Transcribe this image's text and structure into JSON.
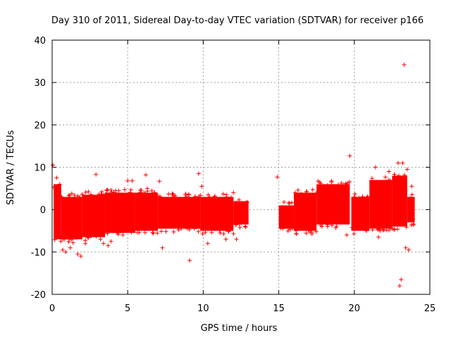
{
  "chart_data": {
    "type": "scatter",
    "title": "Day 310 of 2011, Sidereal Day-to-day VTEC variation (SDTVAR) for receiver p166",
    "xlabel": "GPS time / hours",
    "ylabel": "SDTVAR / TECUs",
    "xlim": [
      0,
      25
    ],
    "ylim": [
      -20,
      40
    ],
    "xticks": [
      0,
      5,
      10,
      15,
      20,
      25
    ],
    "yticks": [
      -20,
      -10,
      0,
      10,
      20,
      30,
      40
    ],
    "grid": true,
    "marker": "+",
    "color": "#ff0000",
    "series": [
      {
        "name": "SDTVAR",
        "bands": [
          {
            "x": [
              0.1,
              0.6
            ],
            "low": -7,
            "high": 6
          },
          {
            "x": [
              0.6,
              2.0
            ],
            "low": -7,
            "high": 3
          },
          {
            "x": [
              2.0,
              3.5
            ],
            "low": -6.5,
            "high": 3.5
          },
          {
            "x": [
              3.5,
              5.5
            ],
            "low": -5.5,
            "high": 4
          },
          {
            "x": [
              5.5,
              7.0
            ],
            "low": -5.0,
            "high": 4
          },
          {
            "x": [
              7.0,
              9.8
            ],
            "low": -4.5,
            "high": 3
          },
          {
            "x": [
              9.8,
              12.0
            ],
            "low": -5.0,
            "high": 3
          },
          {
            "x": [
              12.0,
              13.0
            ],
            "low": -3.5,
            "high": 2
          },
          {
            "x": [
              15.0,
              16.0
            ],
            "low": -4.5,
            "high": 1
          },
          {
            "x": [
              16.0,
              17.5
            ],
            "low": -5.0,
            "high": 4
          },
          {
            "x": [
              17.5,
              19.7
            ],
            "low": -3.5,
            "high": 6
          },
          {
            "x": [
              19.8,
              21.0
            ],
            "low": -5.0,
            "high": 3
          },
          {
            "x": [
              21.0,
              22.5
            ],
            "low": -4.5,
            "high": 7
          },
          {
            "x": [
              22.5,
              23.5
            ],
            "low": -4.0,
            "high": 8
          },
          {
            "x": [
              23.5,
              24.0
            ],
            "low": -3.0,
            "high": 3
          }
        ],
        "points": [
          [
            0.05,
            10.5
          ],
          [
            0.3,
            7.5
          ],
          [
            0.5,
            6.0
          ],
          [
            0.7,
            -9.5
          ],
          [
            0.9,
            -10
          ],
          [
            1.2,
            -9.0
          ],
          [
            1.7,
            -10.5
          ],
          [
            1.9,
            -11
          ],
          [
            2.2,
            -8.0
          ],
          [
            2.9,
            8.3
          ],
          [
            3.4,
            -8.0
          ],
          [
            3.7,
            -8.5
          ],
          [
            3.9,
            -7.5
          ],
          [
            4.2,
            4.5
          ],
          [
            5.0,
            6.8
          ],
          [
            5.3,
            6.8
          ],
          [
            6.2,
            8.2
          ],
          [
            6.3,
            5.0
          ],
          [
            7.1,
            6.7
          ],
          [
            7.3,
            -9.0
          ],
          [
            9.1,
            -12.0
          ],
          [
            9.7,
            8.5
          ],
          [
            9.9,
            5.5
          ],
          [
            10.3,
            -8.0
          ],
          [
            11.5,
            -7.0
          ],
          [
            12.0,
            4.0
          ],
          [
            12.2,
            -7.0
          ],
          [
            14.9,
            7.7
          ],
          [
            19.7,
            12.7
          ],
          [
            19.5,
            -6.0
          ],
          [
            21.4,
            10.0
          ],
          [
            21.6,
            -6.5
          ],
          [
            22.3,
            9.0
          ],
          [
            22.9,
            11.0
          ],
          [
            23.0,
            -18.0
          ],
          [
            23.1,
            -16.5
          ],
          [
            23.2,
            11.0
          ],
          [
            23.3,
            34.2
          ],
          [
            23.4,
            -9.0
          ],
          [
            23.5,
            9.5
          ],
          [
            23.6,
            -9.5
          ],
          [
            23.8,
            5.5
          ]
        ]
      }
    ]
  }
}
